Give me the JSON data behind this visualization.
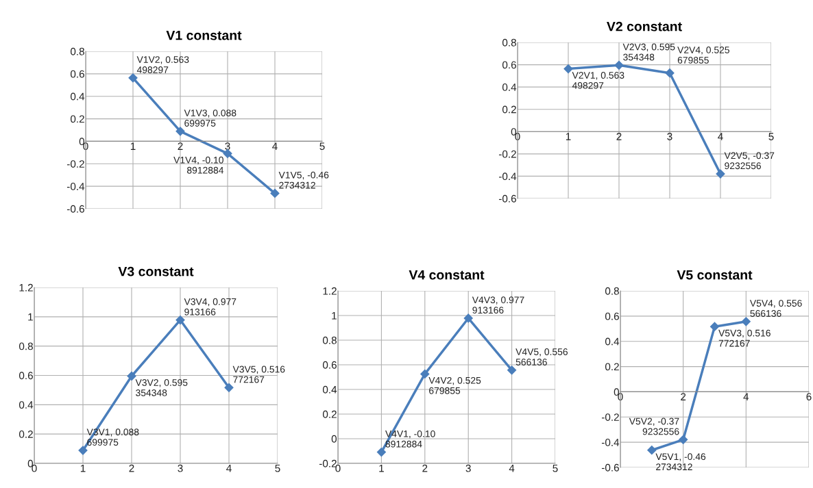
{
  "chart_data": [
    {
      "type": "line",
      "title": "V1 constant",
      "x": [
        1,
        2,
        3,
        4
      ],
      "series": [
        {
          "color": "#4a7ebb",
          "values": [
            0.563498297,
            0.088699975,
            -0.108912884,
            -0.462734312
          ],
          "value_labels": [
            "V1V2, 0.563498297",
            "V1V3, 0.088699975",
            "V1V4, -0.108912884",
            "V1V5, -0.462734312"
          ]
        }
      ],
      "xlim": [
        0,
        5
      ],
      "xticks": [
        0,
        1,
        2,
        3,
        4,
        5
      ],
      "ylim": [
        -0.6,
        0.8
      ],
      "yticks": [
        -0.6,
        -0.4,
        -0.2,
        0,
        0.2,
        0.4,
        0.6,
        0.8
      ],
      "grid": true,
      "marker": "diamond",
      "line_style": "solid",
      "legend": false
    },
    {
      "type": "line",
      "title": "V2 constant",
      "x": [
        1,
        2,
        3,
        4
      ],
      "series": [
        {
          "color": "#4a7ebb",
          "values": [
            0.563498297,
            0.595354348,
            0.525679855,
            -0.379232556
          ],
          "value_labels": [
            "V2V1, 0.563498297",
            "V2V3, 0.595354348",
            "V2V4, 0.525679855",
            "V2V5, -0.379232556"
          ]
        }
      ],
      "xlim": [
        0,
        5
      ],
      "xticks": [
        0,
        1,
        2,
        3,
        4,
        5
      ],
      "ylim": [
        -0.6,
        0.8
      ],
      "yticks": [
        -0.6,
        -0.4,
        -0.2,
        0,
        0.2,
        0.4,
        0.6,
        0.8
      ],
      "grid": true,
      "marker": "diamond",
      "line_style": "solid",
      "legend": false
    },
    {
      "type": "line",
      "title": "V3 constant",
      "x": [
        1,
        2,
        3,
        4
      ],
      "series": [
        {
          "color": "#4a7ebb",
          "values": [
            0.088699975,
            0.595354348,
            0.977913166,
            0.516772167
          ],
          "value_labels": [
            "V3V1, 0.088699975",
            "V3V2, 0.595354348",
            "V3V4, 0.977913166",
            "V3V5, 0.516772167"
          ]
        }
      ],
      "xlim": [
        0,
        5
      ],
      "xticks": [
        0,
        1,
        2,
        3,
        4,
        5
      ],
      "ylim": [
        0,
        1.2
      ],
      "yticks": [
        0,
        0.2,
        0.4,
        0.6,
        0.8,
        1,
        1.2
      ],
      "grid": true,
      "marker": "diamond",
      "line_style": "solid",
      "legend": false
    },
    {
      "type": "line",
      "title": "V4 constant",
      "x": [
        1,
        2,
        3,
        4
      ],
      "series": [
        {
          "color": "#4a7ebb",
          "values": [
            -0.108912884,
            0.525679855,
            0.977913166,
            0.556566136
          ],
          "value_labels": [
            "V4V1, -0.108912884",
            "V4V2, 0.525679855",
            "V4V3, 0.977913166",
            "V4V5, 0.556566136"
          ]
        }
      ],
      "xlim": [
        0,
        5
      ],
      "xticks": [
        0,
        1,
        2,
        3,
        4,
        5
      ],
      "ylim": [
        -0.2,
        1.2
      ],
      "yticks": [
        -0.2,
        0,
        0.2,
        0.4,
        0.6,
        0.8,
        1,
        1.2
      ],
      "grid": true,
      "marker": "diamond",
      "line_style": "solid",
      "legend": false
    },
    {
      "type": "line",
      "title": "V5 constant",
      "x": [
        1,
        2,
        3,
        4
      ],
      "series": [
        {
          "color": "#4a7ebb",
          "values": [
            -0.462734312,
            -0.379232556,
            0.516772167,
            0.556566136
          ],
          "value_labels": [
            "V5V1, -0.462734312",
            "V5V2, -0.379232556",
            "V5V3, 0.516772167",
            "V5V4, 0.556566136"
          ]
        }
      ],
      "xlim": [
        0,
        6
      ],
      "xticks": [
        0,
        2,
        4,
        6
      ],
      "ylim": [
        -0.6,
        0.8
      ],
      "yticks": [
        -0.6,
        -0.4,
        -0.2,
        0,
        0.2,
        0.4,
        0.6,
        0.8
      ],
      "grid": true,
      "marker": "diamond",
      "line_style": "solid",
      "legend": false
    }
  ]
}
